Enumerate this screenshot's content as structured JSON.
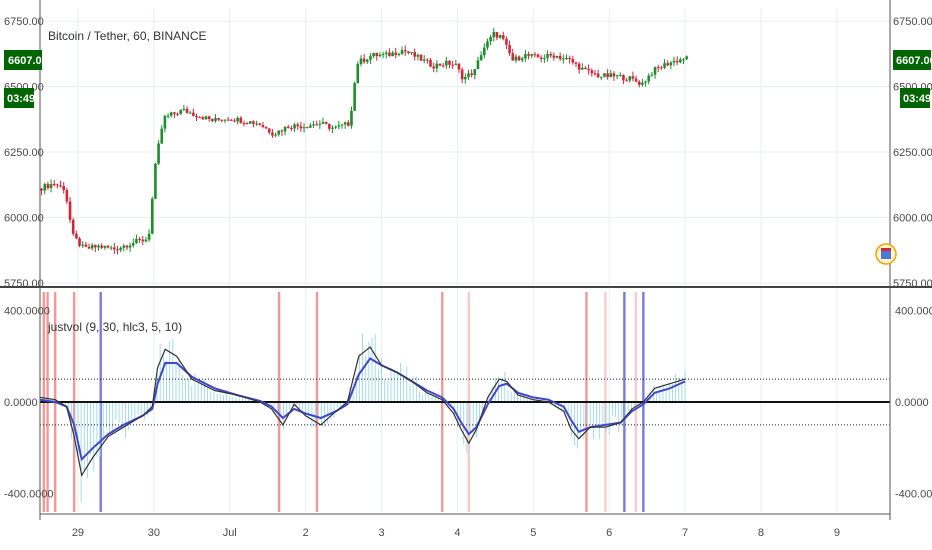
{
  "colors": {
    "up": "#1c8f2c",
    "down": "#d0263a",
    "grid": "#e9eef2",
    "axis_text": "#4a4a4a",
    "badge": "#006400",
    "black_line": "#333333",
    "blue_line": "#3f48cc",
    "histogram": "#8fd3e8",
    "red_band": "#f28d8d",
    "light_red_band": "#f7c5c5",
    "blue_band": "#6b6bdc"
  },
  "price_badge": {
    "price": "6607.00",
    "countdown": "03:49"
  },
  "chart_data": [
    {
      "type": "candlestick",
      "title": "Bitcoin / Tether, 60, BINANCE",
      "ylim": [
        5750,
        6800
      ],
      "yticks": [
        "5750.00",
        "6000.00",
        "6250.00",
        "6500.00",
        "6750.00"
      ],
      "xlim": [
        28.5,
        9.7
      ],
      "xtick_labels": [
        "29",
        "30",
        "Jul",
        "2",
        "3",
        "4",
        "5",
        "6",
        "7",
        "8",
        "9"
      ],
      "series": [
        {
          "kind": "close_path",
          "points": [
            [
              28.5,
              6110
            ],
            [
              28.7,
              6130
            ],
            [
              28.85,
              6110
            ],
            [
              28.95,
              5930
            ],
            [
              29.1,
              5880
            ],
            [
              29.3,
              5890
            ],
            [
              29.5,
              5880
            ],
            [
              29.7,
              5900
            ],
            [
              29.95,
              5920
            ],
            [
              30.05,
              6220
            ],
            [
              30.15,
              6380
            ],
            [
              30.4,
              6410
            ],
            [
              30.6,
              6390
            ],
            [
              30.8,
              6370
            ],
            [
              31.0,
              6380
            ],
            [
              31.2,
              6370
            ],
            [
              31.4,
              6360
            ],
            [
              31.6,
              6320
            ],
            [
              31.8,
              6350
            ],
            [
              32.0,
              6350
            ],
            [
              32.2,
              6360
            ],
            [
              32.4,
              6340
            ],
            [
              32.6,
              6360
            ],
            [
              32.7,
              6590
            ],
            [
              32.9,
              6620
            ],
            [
              33.1,
              6620
            ],
            [
              33.3,
              6640
            ],
            [
              33.5,
              6610
            ],
            [
              33.7,
              6580
            ],
            [
              33.9,
              6590
            ],
            [
              34.0,
              6580
            ],
            [
              34.1,
              6530
            ],
            [
              34.25,
              6560
            ],
            [
              34.35,
              6640
            ],
            [
              34.5,
              6700
            ],
            [
              34.6,
              6690
            ],
            [
              34.75,
              6600
            ],
            [
              34.9,
              6620
            ],
            [
              35.1,
              6610
            ],
            [
              35.3,
              6620
            ],
            [
              35.5,
              6600
            ],
            [
              35.7,
              6560
            ],
            [
              35.9,
              6540
            ],
            [
              36.1,
              6540
            ],
            [
              36.3,
              6530
            ],
            [
              36.45,
              6510
            ],
            [
              36.6,
              6560
            ],
            [
              36.8,
              6590
            ],
            [
              37.0,
              6607
            ]
          ]
        }
      ]
    },
    {
      "type": "line",
      "title": "justvol (9, 30, hlc3, 5, 10)",
      "ylim": [
        -480,
        480
      ],
      "yticks": [
        "-400.0000",
        "0.0000",
        "400.0000"
      ],
      "reference_lines": [
        100,
        0,
        -100
      ],
      "series": [
        {
          "name": "black",
          "points": [
            [
              28.5,
              20
            ],
            [
              28.7,
              10
            ],
            [
              28.85,
              -20
            ],
            [
              28.95,
              -150
            ],
            [
              29.05,
              -320
            ],
            [
              29.2,
              -240
            ],
            [
              29.4,
              -150
            ],
            [
              29.6,
              -110
            ],
            [
              29.85,
              -60
            ],
            [
              29.98,
              -20
            ],
            [
              30.05,
              150
            ],
            [
              30.15,
              230
            ],
            [
              30.3,
              200
            ],
            [
              30.5,
              100
            ],
            [
              30.8,
              50
            ],
            [
              31.1,
              30
            ],
            [
              31.4,
              0
            ],
            [
              31.55,
              -30
            ],
            [
              31.7,
              -100
            ],
            [
              31.85,
              -10
            ],
            [
              32.0,
              -60
            ],
            [
              32.2,
              -100
            ],
            [
              32.4,
              -40
            ],
            [
              32.55,
              0
            ],
            [
              32.7,
              200
            ],
            [
              32.85,
              240
            ],
            [
              33.0,
              160
            ],
            [
              33.2,
              130
            ],
            [
              33.4,
              90
            ],
            [
              33.6,
              40
            ],
            [
              33.8,
              10
            ],
            [
              33.95,
              -50
            ],
            [
              34.05,
              -120
            ],
            [
              34.15,
              -180
            ],
            [
              34.25,
              -120
            ],
            [
              34.4,
              20
            ],
            [
              34.55,
              100
            ],
            [
              34.65,
              90
            ],
            [
              34.8,
              30
            ],
            [
              35.0,
              10
            ],
            [
              35.2,
              0
            ],
            [
              35.4,
              -40
            ],
            [
              35.5,
              -120
            ],
            [
              35.6,
              -160
            ],
            [
              35.75,
              -110
            ],
            [
              35.95,
              -110
            ],
            [
              36.15,
              -90
            ],
            [
              36.3,
              -30
            ],
            [
              36.45,
              0
            ],
            [
              36.6,
              60
            ],
            [
              36.8,
              80
            ],
            [
              37.0,
              100
            ]
          ]
        },
        {
          "name": "blue",
          "points": [
            [
              28.5,
              10
            ],
            [
              28.7,
              0
            ],
            [
              28.85,
              -20
            ],
            [
              28.95,
              -100
            ],
            [
              29.05,
              -250
            ],
            [
              29.2,
              -200
            ],
            [
              29.4,
              -140
            ],
            [
              29.6,
              -100
            ],
            [
              29.85,
              -60
            ],
            [
              29.98,
              -30
            ],
            [
              30.05,
              80
            ],
            [
              30.15,
              170
            ],
            [
              30.3,
              170
            ],
            [
              30.5,
              110
            ],
            [
              30.8,
              60
            ],
            [
              31.1,
              30
            ],
            [
              31.4,
              5
            ],
            [
              31.55,
              -20
            ],
            [
              31.7,
              -70
            ],
            [
              31.85,
              -30
            ],
            [
              32.0,
              -50
            ],
            [
              32.2,
              -70
            ],
            [
              32.4,
              -40
            ],
            [
              32.55,
              -10
            ],
            [
              32.7,
              120
            ],
            [
              32.85,
              190
            ],
            [
              33.0,
              160
            ],
            [
              33.2,
              130
            ],
            [
              33.4,
              90
            ],
            [
              33.6,
              50
            ],
            [
              33.8,
              20
            ],
            [
              33.95,
              -30
            ],
            [
              34.05,
              -90
            ],
            [
              34.15,
              -140
            ],
            [
              34.25,
              -110
            ],
            [
              34.4,
              -10
            ],
            [
              34.55,
              70
            ],
            [
              34.65,
              80
            ],
            [
              34.8,
              40
            ],
            [
              35.0,
              20
            ],
            [
              35.2,
              10
            ],
            [
              35.4,
              -20
            ],
            [
              35.5,
              -80
            ],
            [
              35.6,
              -130
            ],
            [
              35.75,
              -110
            ],
            [
              35.95,
              -100
            ],
            [
              36.15,
              -90
            ],
            [
              36.3,
              -40
            ],
            [
              36.45,
              -10
            ],
            [
              36.6,
              40
            ],
            [
              36.8,
              60
            ],
            [
              37.0,
              90
            ]
          ]
        }
      ],
      "vertical_bands": [
        {
          "x": 28.55,
          "kind": "red"
        },
        [
          28.6,
          "red"
        ],
        {
          "x": 28.7,
          "kind": "red"
        },
        {
          "x": 28.95,
          "kind": "red"
        },
        {
          "x": 29.3,
          "kind": "blue"
        },
        {
          "x": 31.65,
          "kind": "red"
        },
        {
          "x": 32.15,
          "kind": "red"
        },
        {
          "x": 33.8,
          "kind": "red"
        },
        {
          "x": 34.15,
          "kind": "light_red"
        },
        {
          "x": 35.7,
          "kind": "red"
        },
        {
          "x": 35.95,
          "kind": "light_red"
        },
        {
          "x": 36.2,
          "kind": "blue"
        },
        {
          "x": 36.35,
          "kind": "light_red"
        },
        {
          "x": 36.45,
          "kind": "blue"
        }
      ]
    }
  ]
}
